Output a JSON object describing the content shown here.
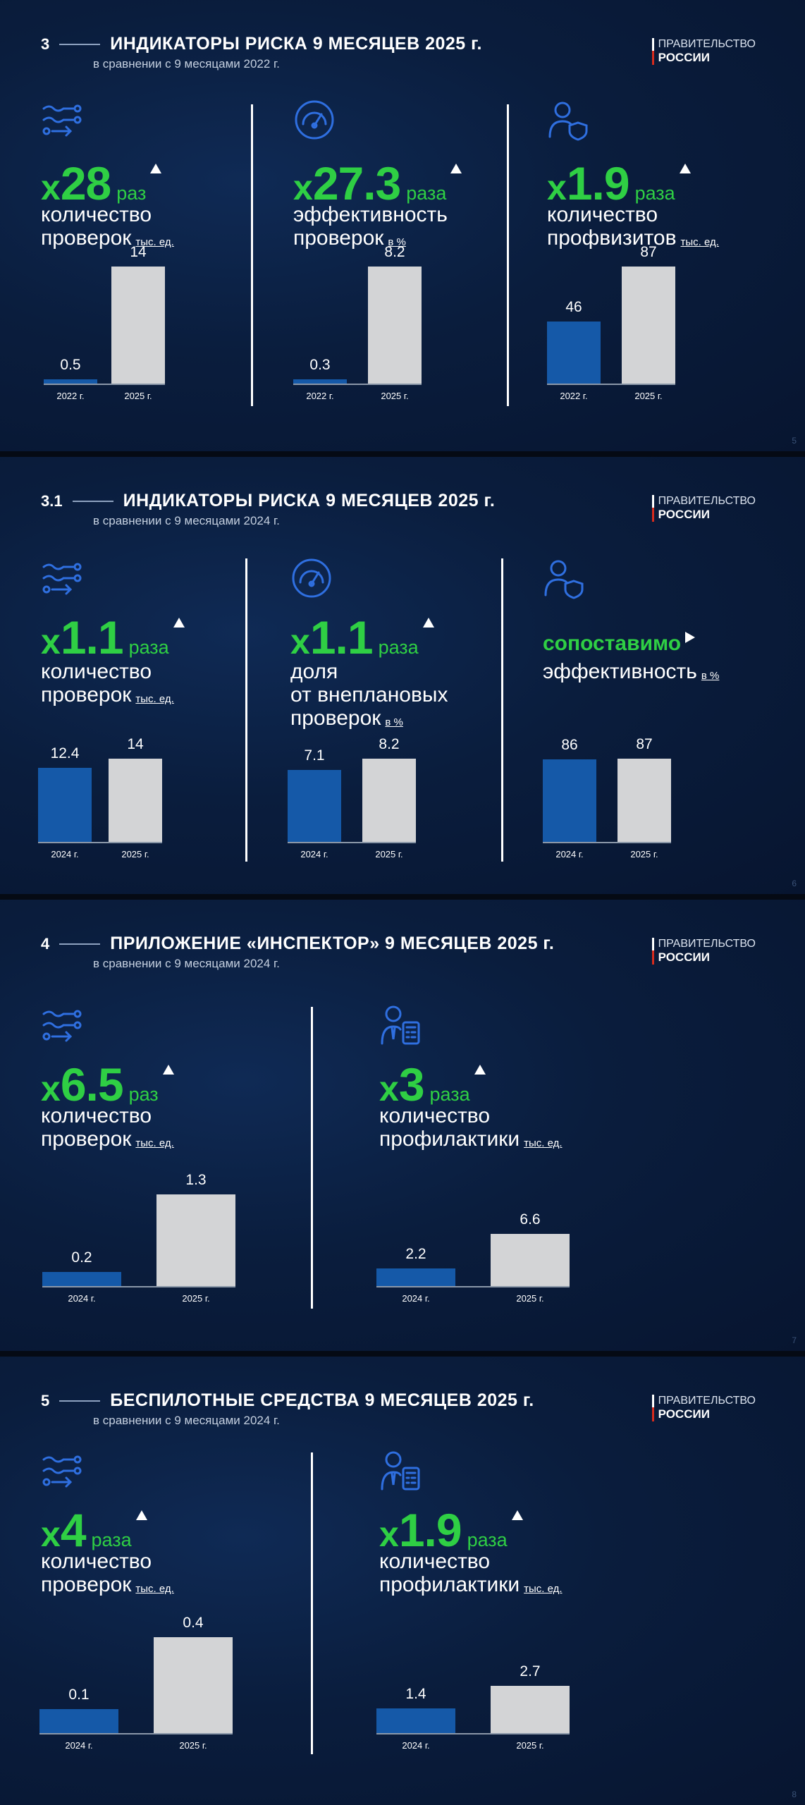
{
  "colors": {
    "accent": "#2fcf44",
    "bar_prev": "#1559a8",
    "bar_curr": "#d3d4d6",
    "background": "#0a1d3d"
  },
  "logo": {
    "top": "ПРАВИТЕЛЬСТВО",
    "bottom": "РОССИИ"
  },
  "slides": [
    {
      "number": "3",
      "title": "ИНДИКАТОРЫ РИСКА 9 МЕСЯЦЕВ 2025 г.",
      "subtitle": "в сравнении с 9 месяцами 2022 г.",
      "page": "5",
      "panels": [
        {
          "icon": "flow-arrows-icon",
          "x": "х",
          "num": "28",
          "unit": "раз",
          "trend": "up",
          "label_lines": [
            "количество",
            "проверок"
          ],
          "label_unit": "тыс. ед."
        },
        {
          "icon": "speedometer-icon",
          "x": "х",
          "num": "27.3",
          "unit": "раза",
          "trend": "up",
          "label_lines": [
            "эффективность",
            "проверок"
          ],
          "label_unit": "в %"
        },
        {
          "icon": "user-shield-icon",
          "x": "х",
          "num": "1.9",
          "unit": "раза",
          "trend": "up",
          "label_lines": [
            "количество",
            "профвизитов"
          ],
          "label_unit": "тыс. ед."
        }
      ]
    },
    {
      "number": "3.1",
      "title": "ИНДИКАТОРЫ РИСКА 9 МЕСЯЦЕВ 2025 г.",
      "subtitle": "в сравнении с 9 месяцами 2024 г.",
      "page": "6",
      "panels": [
        {
          "icon": "flow-arrows-icon",
          "x": "х",
          "num": "1.1",
          "unit": "раза",
          "trend": "up",
          "label_lines": [
            "количество",
            "проверок"
          ],
          "label_unit": "тыс. ед."
        },
        {
          "icon": "speedometer-icon",
          "x": "х",
          "num": "1.1",
          "unit": "раза",
          "trend": "up",
          "label_lines": [
            "доля",
            "от внеплановых",
            "проверок"
          ],
          "label_unit": "в %"
        },
        {
          "icon": "user-shield-icon",
          "text": "сопоставимо",
          "trend": "right",
          "label_lines": [
            "эффективность"
          ],
          "label_unit": "в %"
        }
      ]
    },
    {
      "number": "4",
      "title": "ПРИЛОЖЕНИЕ «ИНСПЕКТОР» 9 МЕСЯЦЕВ 2025 г.",
      "subtitle": "в сравнении с 9 месяцами 2024 г.",
      "page": "7",
      "panels": [
        {
          "icon": "flow-arrows-icon",
          "x": "х",
          "num": "6.5",
          "unit": "раз",
          "trend": "up",
          "label_lines": [
            "количество",
            "проверок"
          ],
          "label_unit": "тыс. ед."
        },
        {
          "icon": "inspector-calculator-icon",
          "x": "х",
          "num": "3",
          "unit": "раза",
          "trend": "up",
          "label_lines": [
            "количество",
            "профилактики"
          ],
          "label_unit": "тыс. ед."
        }
      ]
    },
    {
      "number": "5",
      "title": "БЕСПИЛОТНЫЕ СРЕДСТВА 9 МЕСЯЦЕВ 2025 г.",
      "subtitle": "в сравнении с 9 месяцами 2024 г.",
      "page": "8",
      "panels": [
        {
          "icon": "flow-arrows-icon",
          "x": "х",
          "num": "4",
          "unit": "раза",
          "trend": "up",
          "label_lines": [
            "количество",
            "проверок"
          ],
          "label_unit": "тыс. ед."
        },
        {
          "icon": "inspector-calculator-icon",
          "x": "х",
          "num": "1.9",
          "unit": "раза",
          "trend": "up",
          "label_lines": [
            "количество",
            "профилактики"
          ],
          "label_unit": "тыс. ед."
        }
      ]
    }
  ],
  "chart_data": [
    {
      "type": "bar",
      "categories": [
        "2022 г.",
        "2025 г."
      ],
      "values": [
        0.5,
        14
      ],
      "value_labels": [
        "0.5",
        "14"
      ]
    },
    {
      "type": "bar",
      "categories": [
        "2022 г.",
        "2025 г."
      ],
      "values": [
        0.3,
        8.2
      ],
      "value_labels": [
        "0.3",
        "8.2"
      ]
    },
    {
      "type": "bar",
      "categories": [
        "2022 г.",
        "2025 г."
      ],
      "values": [
        46,
        87
      ],
      "value_labels": [
        "46",
        "87"
      ]
    },
    {
      "type": "bar",
      "categories": [
        "2024 г.",
        "2025 г."
      ],
      "values": [
        12.4,
        14
      ],
      "value_labels": [
        "12.4",
        "14"
      ]
    },
    {
      "type": "bar",
      "categories": [
        "2024 г.",
        "2025 г."
      ],
      "values": [
        7.1,
        8.2
      ],
      "value_labels": [
        "7.1",
        "8.2"
      ]
    },
    {
      "type": "bar",
      "categories": [
        "2024 г.",
        "2025 г."
      ],
      "values": [
        86,
        87
      ],
      "value_labels": [
        "86",
        "87"
      ]
    },
    {
      "type": "bar",
      "categories": [
        "2024 г.",
        "2025 г."
      ],
      "values": [
        0.2,
        1.3
      ],
      "value_labels": [
        "0.2",
        "1.3"
      ]
    },
    {
      "type": "bar",
      "categories": [
        "2024 г.",
        "2025 г."
      ],
      "values": [
        2.2,
        6.6
      ],
      "value_labels": [
        "2.2",
        "6.6"
      ]
    },
    {
      "type": "bar",
      "categories": [
        "2024 г.",
        "2025 г."
      ],
      "values": [
        0.1,
        0.4
      ],
      "value_labels": [
        "0.1",
        "0.4"
      ]
    },
    {
      "type": "bar",
      "categories": [
        "2024 г.",
        "2025 г."
      ],
      "values": [
        1.4,
        2.7
      ],
      "value_labels": [
        "1.4",
        "2.7"
      ]
    }
  ]
}
